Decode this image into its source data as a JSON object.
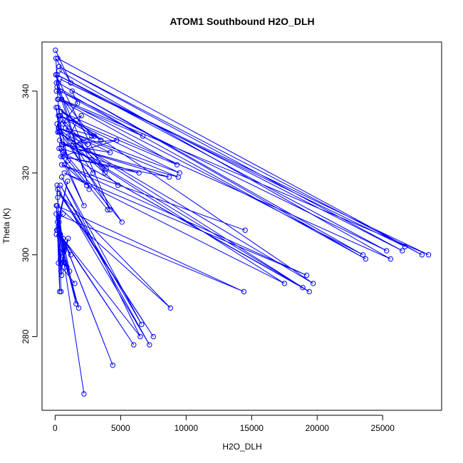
{
  "chart_data": {
    "type": "line",
    "title": "ATOM1 Southbound H2O_DLH",
    "xlabel": "H2O_DLH",
    "ylabel": "Theta (K)",
    "xlim": [
      -1000,
      29500
    ],
    "ylim": [
      262,
      352
    ],
    "x_ticks": [
      0,
      5000,
      10000,
      15000,
      20000,
      25000
    ],
    "y_ticks": [
      280,
      300,
      320,
      340
    ],
    "grid": false,
    "color": "#0000ff",
    "series": [
      {
        "x": [
          30,
          1200,
          60,
          200,
          400,
          3800,
          50,
          2600,
          100,
          4200,
          150,
          500,
          80,
          300,
          1000,
          250
        ],
        "y": [
          350,
          342,
          348,
          338,
          333,
          320,
          344,
          316,
          342,
          311,
          332,
          327,
          336,
          330,
          323,
          334
        ]
      },
      {
        "x": [
          200,
          28000,
          300,
          26500,
          150,
          25300,
          400,
          23700,
          250,
          23500,
          500,
          28500,
          350,
          26700
        ],
        "y": [
          348,
          300,
          346,
          301,
          344,
          301,
          340,
          299,
          342,
          300,
          338,
          300,
          343,
          302
        ]
      },
      {
        "x": [
          300,
          25600,
          450,
          19700,
          200,
          19400,
          600,
          18900,
          350,
          17500,
          700,
          19200,
          500,
          14500
        ],
        "y": [
          345,
          299,
          335,
          293,
          330,
          291,
          325,
          292,
          328,
          293,
          320,
          295,
          322,
          306
        ]
      },
      {
        "x": [
          150,
          6700,
          250,
          9300,
          400,
          9500,
          300,
          9400,
          500,
          8700,
          600,
          6400,
          450,
          5100,
          350,
          4800
        ],
        "y": [
          341,
          329,
          338,
          322,
          334,
          320,
          331,
          319,
          327,
          319,
          324,
          320,
          326,
          308,
          330,
          317
        ]
      },
      {
        "x": [
          100,
          2800,
          200,
          3500,
          350,
          3900,
          250,
          4200,
          600,
          4700,
          450,
          2400,
          700,
          2200,
          300,
          4000
        ],
        "y": [
          340,
          329,
          336,
          328,
          334,
          321,
          331,
          325,
          327,
          328,
          324,
          317,
          322,
          312,
          326,
          311
        ]
      },
      {
        "x": [
          80,
          14400,
          150,
          8800,
          300,
          7500,
          200,
          7200,
          400,
          6600,
          500,
          6500,
          350,
          6000,
          600,
          4400,
          250,
          2200
        ],
        "y": [
          310,
          291,
          312,
          287,
          315,
          280,
          316,
          278,
          317,
          283,
          319,
          280,
          305,
          278,
          304,
          273,
          307,
          266
        ]
      },
      {
        "x": [
          100,
          1800,
          200,
          1600,
          300,
          1100,
          400,
          900,
          500,
          700,
          350,
          1200,
          600,
          800,
          450,
          1000,
          250,
          1500
        ],
        "y": [
          305,
          287,
          306,
          288,
          308,
          296,
          299,
          297,
          298,
          301,
          305,
          300,
          303,
          302,
          296,
          304,
          298,
          293
        ]
      },
      {
        "x": [
          150,
          450,
          200,
          350,
          100,
          500,
          300,
          800,
          250,
          400,
          120,
          950,
          180,
          600
        ],
        "y": [
          317,
          291,
          314,
          291,
          312,
          295,
          310,
          298,
          309,
          305,
          306,
          318,
          308,
          310
        ]
      },
      {
        "x": [
          1300,
          1700,
          600,
          2000,
          1000,
          2500,
          800,
          3000,
          1400,
          2900
        ],
        "y": [
          340,
          337,
          332,
          334,
          329,
          327,
          331,
          329,
          327,
          320
        ]
      }
    ]
  }
}
